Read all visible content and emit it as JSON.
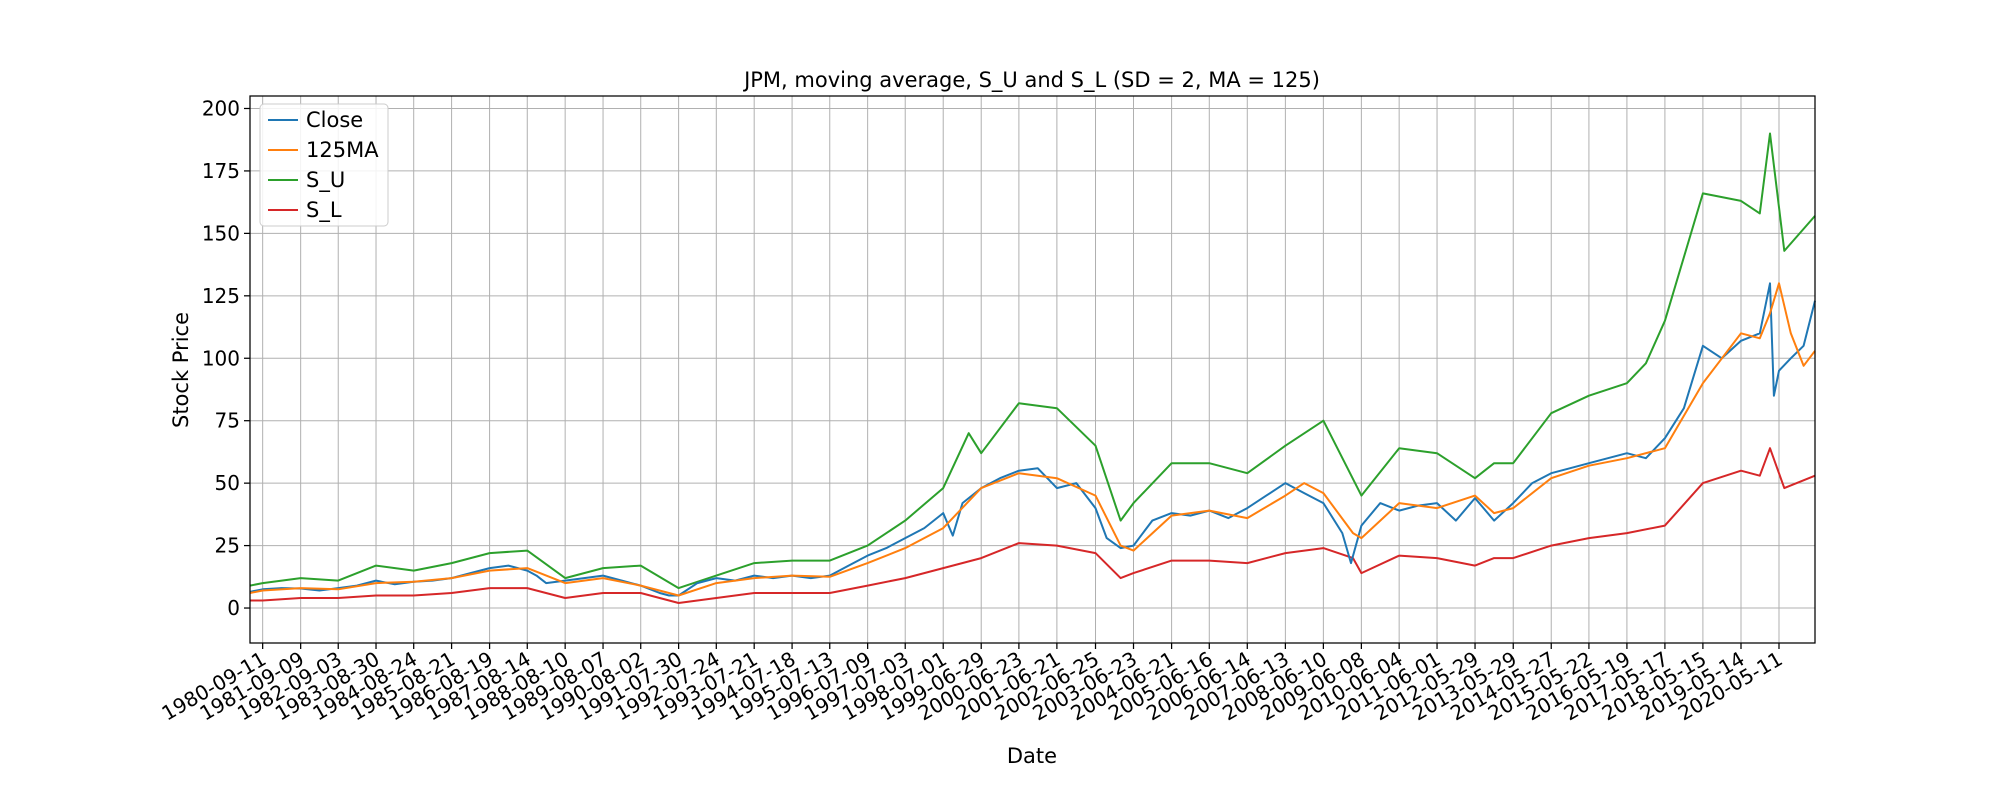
{
  "chart_data": {
    "type": "line",
    "title": "JPM, moving average, S_U and S_L (SD = 2, MA = 125)",
    "xlabel": "Date",
    "ylabel": "Stock Price",
    "ylim": [
      -14,
      205
    ],
    "xlim": [
      "1980-05-13",
      "2021-04-20"
    ],
    "yticks": [
      0,
      25,
      50,
      75,
      100,
      125,
      150,
      175,
      200
    ],
    "xticks": [
      "1980-09-11",
      "1981-09-09",
      "1982-09-03",
      "1983-08-30",
      "1984-08-24",
      "1985-08-21",
      "1986-08-19",
      "1987-08-14",
      "1988-08-10",
      "1989-08-07",
      "1990-08-02",
      "1991-07-30",
      "1992-07-24",
      "1993-07-21",
      "1994-07-18",
      "1995-07-13",
      "1996-07-09",
      "1997-07-03",
      "1998-07-01",
      "1999-06-29",
      "2000-06-23",
      "2001-06-21",
      "2002-06-25",
      "2003-06-23",
      "2004-06-21",
      "2005-06-16",
      "2006-06-14",
      "2007-06-13",
      "2008-06-10",
      "2009-06-08",
      "2010-06-04",
      "2011-06-01",
      "2012-05-29",
      "2013-05-29",
      "2014-05-27",
      "2015-05-22",
      "2016-05-19",
      "2017-05-17",
      "2018-05-15",
      "2019-05-14",
      "2020-05-11"
    ],
    "grid": true,
    "legend_position": "upper-left",
    "series": [
      {
        "name": "Close",
        "color": "#1f77b4",
        "x": [
          "1980-05-13",
          "1980-09-11",
          "1981-03-10",
          "1981-09-09",
          "1982-03-08",
          "1982-09-03",
          "1983-03-01",
          "1983-08-30",
          "1984-02-25",
          "1984-08-24",
          "1985-02-20",
          "1985-08-21",
          "1986-02-18",
          "1986-08-19",
          "1987-02-15",
          "1987-08-14",
          "1987-11-10",
          "1988-02-10",
          "1988-08-10",
          "1989-02-07",
          "1989-08-07",
          "1990-02-02",
          "1990-08-02",
          "1991-01-30",
          "1991-04-30",
          "1991-07-30",
          "1992-01-25",
          "1992-07-24",
          "1993-01-20",
          "1993-07-21",
          "1994-01-18",
          "1994-07-18",
          "1995-01-13",
          "1995-07-13",
          "1996-01-09",
          "1996-07-09",
          "1997-01-03",
          "1997-07-03",
          "1998-01-01",
          "1998-07-01",
          "1998-10-01",
          "1999-01-01",
          "1999-06-29",
          "1999-12-25",
          "2000-06-23",
          "2000-12-20",
          "2001-06-21",
          "2001-12-23",
          "2002-06-25",
          "2002-10-10",
          "2003-02-20",
          "2003-06-23",
          "2003-12-20",
          "2004-06-21",
          "2004-12-17",
          "2005-06-16",
          "2005-12-15",
          "2006-06-14",
          "2006-12-13",
          "2007-06-13",
          "2007-12-10",
          "2008-06-10",
          "2008-12-08",
          "2009-03-01",
          "2009-06-08",
          "2009-12-05",
          "2010-06-04",
          "2010-12-02",
          "2011-06-01",
          "2011-11-28",
          "2012-05-29",
          "2012-11-27",
          "2013-05-29",
          "2013-11-26",
          "2014-05-27",
          "2014-11-24",
          "2015-05-22",
          "2015-11-19",
          "2016-05-19",
          "2016-11-16",
          "2017-05-17",
          "2017-11-14",
          "2018-05-15",
          "2018-11-12",
          "2019-05-14",
          "2019-11-10",
          "2020-02-15",
          "2020-03-23",
          "2020-05-11",
          "2020-09-01",
          "2021-01-01",
          "2021-04-20"
        ],
        "values": [
          6.5,
          7.5,
          8,
          7.8,
          7,
          8,
          9,
          11,
          9.5,
          10.5,
          11,
          12,
          14,
          16,
          17,
          15,
          13,
          10,
          11,
          12,
          13,
          11,
          9,
          6,
          5,
          5,
          10,
          12,
          11,
          13,
          12,
          13,
          12,
          13,
          17,
          21,
          24,
          28,
          32,
          38,
          29,
          42,
          48,
          52,
          55,
          56,
          48,
          50,
          40,
          28,
          24,
          25,
          35,
          38,
          37,
          39,
          36,
          40,
          45,
          50,
          46,
          42,
          30,
          18,
          33,
          42,
          39,
          41,
          42,
          35,
          44,
          35,
          42,
          50,
          54,
          56,
          58,
          60,
          62,
          60,
          68,
          80,
          105,
          100,
          107,
          110,
          130,
          85,
          95,
          100,
          105,
          123
        ]
      },
      {
        "name": "125MA",
        "color": "#ff7f0e",
        "x": [
          "1980-05-13",
          "1980-09-11",
          "1981-09-09",
          "1982-09-03",
          "1983-08-30",
          "1984-08-24",
          "1985-08-21",
          "1986-08-19",
          "1987-08-14",
          "1988-08-10",
          "1989-08-07",
          "1990-08-02",
          "1991-07-30",
          "1992-07-24",
          "1993-07-21",
          "1994-07-18",
          "1995-07-13",
          "1996-07-09",
          "1997-07-03",
          "1998-07-01",
          "1999-06-29",
          "2000-06-23",
          "2001-06-21",
          "2002-06-25",
          "2003-02-20",
          "2003-06-23",
          "2004-06-21",
          "2005-06-16",
          "2006-06-14",
          "2007-06-13",
          "2007-12-10",
          "2008-06-10",
          "2009-03-20",
          "2009-06-08",
          "2010-06-04",
          "2011-06-01",
          "2012-05-29",
          "2012-11-27",
          "2013-05-29",
          "2014-05-27",
          "2015-05-22",
          "2016-05-19",
          "2017-05-17",
          "2018-05-15",
          "2019-05-14",
          "2019-11-10",
          "2020-02-15",
          "2020-05-11",
          "2020-09-01",
          "2021-01-01",
          "2021-04-20"
        ],
        "values": [
          6,
          7,
          8,
          7.5,
          10,
          10.5,
          12,
          15,
          16,
          10,
          12,
          9,
          5,
          10,
          12,
          13,
          12.5,
          18,
          24,
          32,
          48,
          54,
          52,
          45,
          25,
          23,
          37,
          39,
          36,
          45,
          50,
          46,
          30,
          28,
          42,
          40,
          45,
          38,
          40,
          52,
          57,
          60,
          64,
          90,
          110,
          108,
          118,
          130,
          110,
          97,
          103
        ]
      },
      {
        "name": "S_U",
        "color": "#2ca02c",
        "x": [
          "1980-05-13",
          "1980-09-11",
          "1981-09-09",
          "1982-09-03",
          "1983-08-30",
          "1984-08-24",
          "1985-08-21",
          "1986-08-19",
          "1987-08-14",
          "1988-08-10",
          "1989-08-07",
          "1990-08-02",
          "1991-07-30",
          "1992-07-24",
          "1993-07-21",
          "1994-07-18",
          "1995-07-13",
          "1996-07-09",
          "1997-07-03",
          "1998-07-01",
          "1999-03-01",
          "1999-06-29",
          "2000-06-23",
          "2001-06-21",
          "2002-06-25",
          "2003-02-20",
          "2003-06-23",
          "2004-06-21",
          "2005-06-16",
          "2006-06-14",
          "2007-06-13",
          "2008-06-10",
          "2009-06-08",
          "2010-06-04",
          "2011-06-01",
          "2012-05-29",
          "2012-11-27",
          "2013-05-29",
          "2014-05-27",
          "2015-05-22",
          "2016-05-19",
          "2016-11-16",
          "2017-05-17",
          "2018-05-15",
          "2019-05-14",
          "2019-11-10",
          "2020-02-15",
          "2020-07-01",
          "2021-04-20"
        ],
        "values": [
          9,
          10,
          12,
          11,
          17,
          15,
          18,
          22,
          23,
          12,
          16,
          17,
          8,
          13,
          18,
          19,
          19,
          25,
          35,
          48,
          70,
          62,
          82,
          80,
          65,
          35,
          42,
          58,
          58,
          54,
          65,
          75,
          45,
          64,
          62,
          52,
          58,
          58,
          78,
          85,
          90,
          98,
          115,
          166,
          163,
          158,
          190,
          143,
          157
        ]
      },
      {
        "name": "S_L",
        "color": "#d62728",
        "x": [
          "1980-05-13",
          "1980-09-11",
          "1981-09-09",
          "1982-09-03",
          "1983-08-30",
          "1984-08-24",
          "1985-08-21",
          "1986-08-19",
          "1987-08-14",
          "1988-08-10",
          "1989-08-07",
          "1990-08-02",
          "1991-07-30",
          "1992-07-24",
          "1993-07-21",
          "1994-07-18",
          "1995-07-13",
          "1996-07-09",
          "1997-07-03",
          "1998-07-01",
          "1999-06-29",
          "2000-06-23",
          "2001-06-21",
          "2002-06-25",
          "2003-02-20",
          "2003-06-23",
          "2004-06-21",
          "2005-06-16",
          "2006-06-14",
          "2007-06-13",
          "2008-06-10",
          "2009-03-20",
          "2009-06-08",
          "2010-06-04",
          "2011-06-01",
          "2012-05-29",
          "2012-11-27",
          "2013-05-29",
          "2014-05-27",
          "2015-05-22",
          "2016-05-19",
          "2017-05-17",
          "2018-05-15",
          "2019-05-14",
          "2019-11-10",
          "2020-02-15",
          "2020-07-01",
          "2021-04-20"
        ],
        "values": [
          3,
          3,
          4,
          4,
          5,
          5,
          6,
          8,
          8,
          4,
          6,
          6,
          2,
          4,
          6,
          6,
          6,
          9,
          12,
          16,
          20,
          26,
          25,
          22,
          12,
          14,
          19,
          19,
          18,
          22,
          24,
          20,
          14,
          21,
          20,
          17,
          20,
          20,
          25,
          28,
          30,
          33,
          50,
          55,
          53,
          64,
          48,
          53
        ]
      }
    ]
  }
}
